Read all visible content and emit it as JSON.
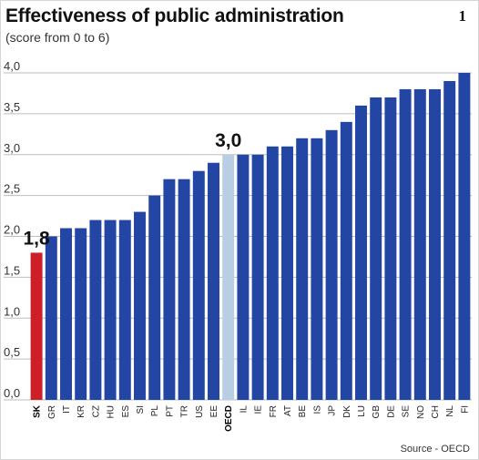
{
  "header": {
    "title": "Effectiveness of public administration",
    "subtitle": "(score from 0 to 6)",
    "figure_number": "1"
  },
  "footer": {
    "source": "Source - OECD"
  },
  "colors": {
    "bar": "#2346a5",
    "highlight": "#cc1f27",
    "reference": "#b9cde3",
    "grid": "#bdbdbd"
  },
  "chart_data": {
    "type": "bar",
    "title": "Effectiveness of public administration",
    "subtitle": "(score from 0 to 6)",
    "xlabel": "",
    "ylabel": "",
    "ylim": [
      0,
      4
    ],
    "yticks": [
      "0,0",
      "0,5",
      "1,0",
      "1,5",
      "2,0",
      "2,5",
      "3,0",
      "3,5",
      "4,0"
    ],
    "grid": true,
    "categories": [
      "SK",
      "GR",
      "IT",
      "KR",
      "CZ",
      "HU",
      "ES",
      "SI",
      "PL",
      "PT",
      "TR",
      "US",
      "EE",
      "OECD",
      "IL",
      "IE",
      "FR",
      "AT",
      "BE",
      "IS",
      "JP",
      "DK",
      "LU",
      "GB",
      "DE",
      "SE",
      "NO",
      "CH",
      "NL",
      "FI"
    ],
    "values": [
      1.8,
      2.0,
      2.1,
      2.1,
      2.2,
      2.2,
      2.2,
      2.3,
      2.5,
      2.7,
      2.7,
      2.8,
      2.9,
      3.0,
      3.0,
      3.0,
      3.1,
      3.1,
      3.2,
      3.2,
      3.3,
      3.4,
      3.6,
      3.7,
      3.7,
      3.8,
      3.8,
      3.8,
      3.9,
      4.0
    ],
    "highlighted": "SK",
    "reference": "OECD",
    "value_labels": {
      "SK": "1,8",
      "OECD": "3,0"
    }
  }
}
